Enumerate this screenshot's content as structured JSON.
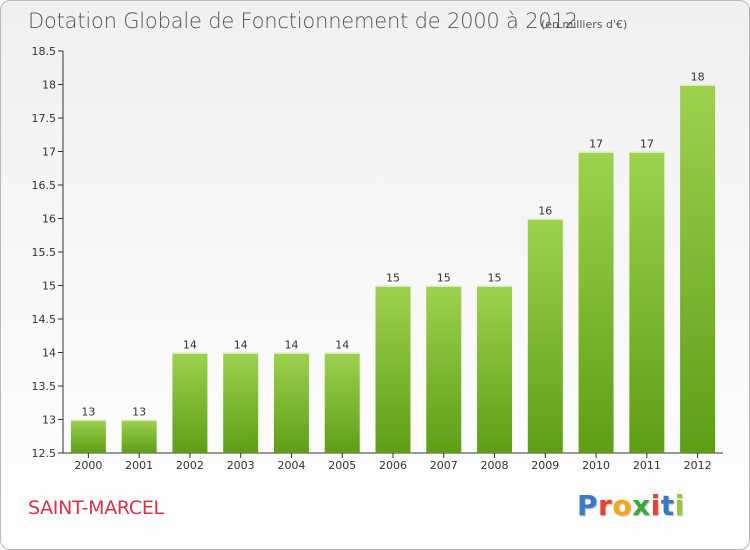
{
  "title": "Dotation Globale de Fonctionnement de 2000 à 2012",
  "subtitle": "(en milliers d'€)",
  "commune": "SAINT-MARCEL",
  "logo": {
    "text": "Proxiti",
    "letter_colors": [
      "#3a78c8",
      "#e8412d",
      "#f0a818",
      "#3aa83a",
      "#e8412d",
      "#3a78c8",
      "#9ac83a"
    ]
  },
  "colors": {
    "bar_light": "#9ed24e",
    "bar_dark": "#5e9e16",
    "axis": "#333333",
    "grid": "#cccccc",
    "text": "#333333"
  },
  "chart_data": {
    "type": "bar",
    "categories": [
      "2000",
      "2001",
      "2002",
      "2003",
      "2004",
      "2005",
      "2006",
      "2007",
      "2008",
      "2009",
      "2010",
      "2011",
      "2012"
    ],
    "values": [
      13,
      13,
      14,
      14,
      14,
      14,
      15,
      15,
      15,
      16,
      17,
      17,
      18
    ],
    "value_labels": [
      "13",
      "13",
      "14",
      "14",
      "14",
      "14",
      "15",
      "15",
      "15",
      "16",
      "17",
      "17",
      "18"
    ],
    "ylim": [
      12.5,
      18.5
    ],
    "yticks": [
      "12.5",
      "13",
      "13.5",
      "14",
      "14.5",
      "15",
      "15.5",
      "16",
      "16.5",
      "17",
      "17.5",
      "18",
      "18.5"
    ],
    "grid": false,
    "xlabel": "",
    "ylabel": ""
  }
}
